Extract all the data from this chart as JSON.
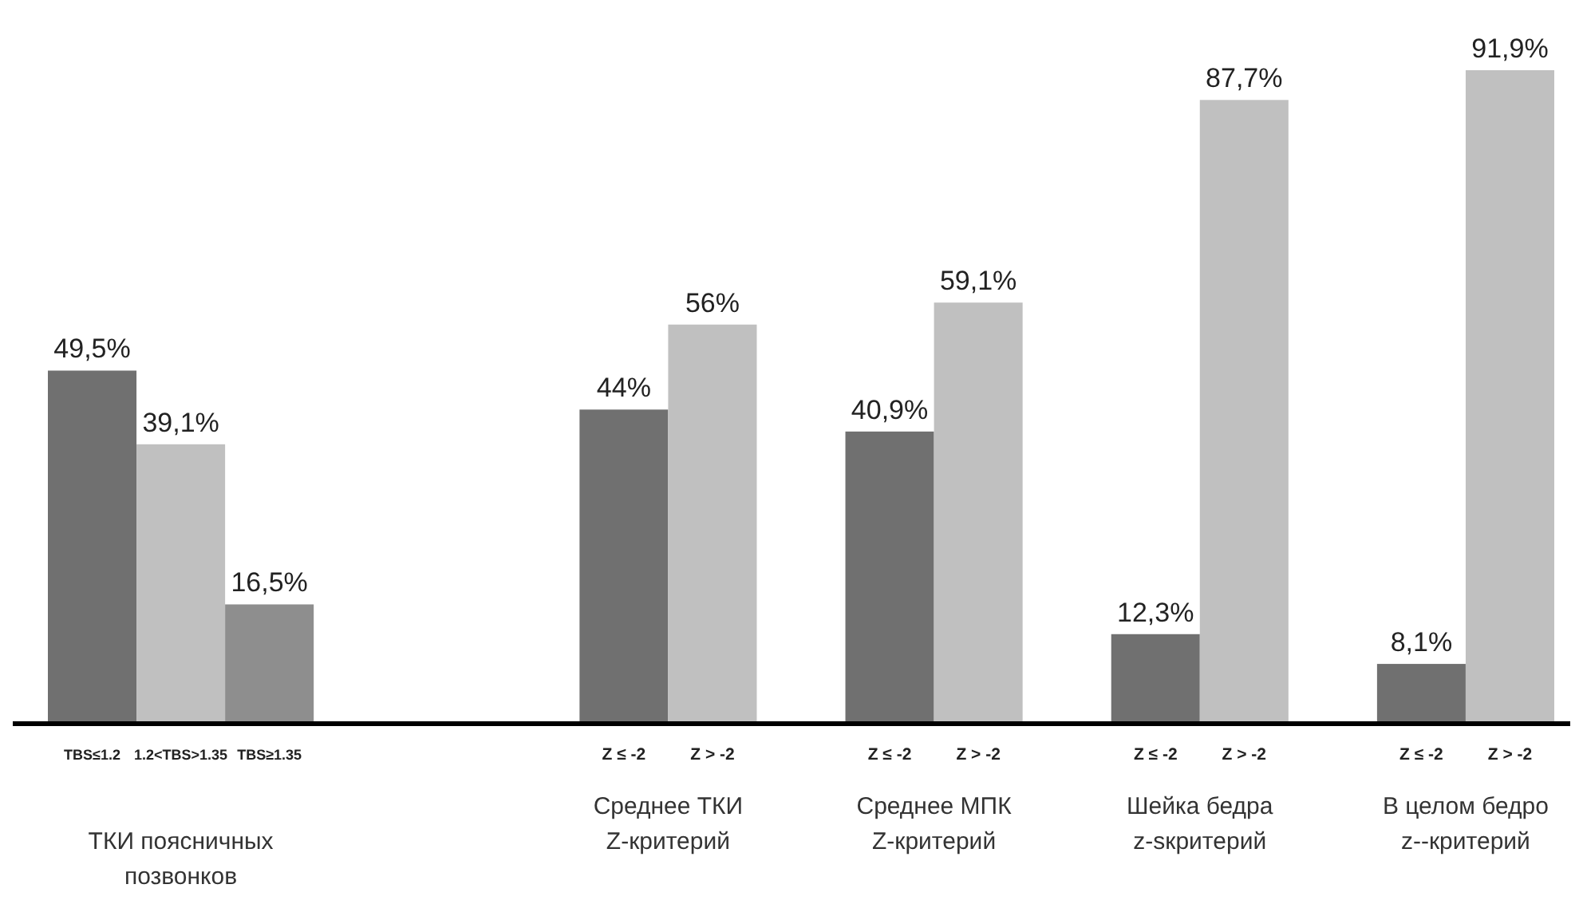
{
  "chart_data": {
    "type": "bar",
    "categories": [
      "TBS≤1.2",
      "1.2<TBS>1.35",
      "TBS≥1.35",
      null,
      null,
      null,
      "Z ≤ -2",
      "Z > -2",
      null,
      "Z ≤ -2",
      "Z > -2",
      null,
      "Z ≤ -2",
      "Z > -2",
      null,
      "Z ≤ -2",
      "Z > -2"
    ],
    "values": [
      49.5,
      39.1,
      16.5,
      null,
      null,
      null,
      44,
      56,
      null,
      40.9,
      59.1,
      null,
      12.3,
      87.7,
      null,
      8.1,
      91.9
    ],
    "value_labels": [
      "49,5%",
      "39,1%",
      "16,5%",
      null,
      null,
      null,
      "44%",
      "56%",
      null,
      "40,9%",
      "59,1%",
      null,
      "12,3%",
      "87,7%",
      null,
      "8,1%",
      "91,9%"
    ],
    "colors": [
      "#707070",
      "#c0c0c0",
      "#8e8e8e",
      null,
      null,
      null,
      "#707070",
      "#c0c0c0",
      null,
      "#707070",
      "#c0c0c0",
      null,
      "#707070",
      "#c0c0c0",
      null,
      "#707070",
      "#c0c0c0"
    ],
    "annotations": [
      "ТКИ поясничных\nпозвонков",
      "Среднее ТКИ\nZ-критерий",
      "Среднее МПК\nZ-критерий",
      "Шейка бедра\nz-sкритерий",
      "В целом бедро\nz--критерий"
    ]
  }
}
